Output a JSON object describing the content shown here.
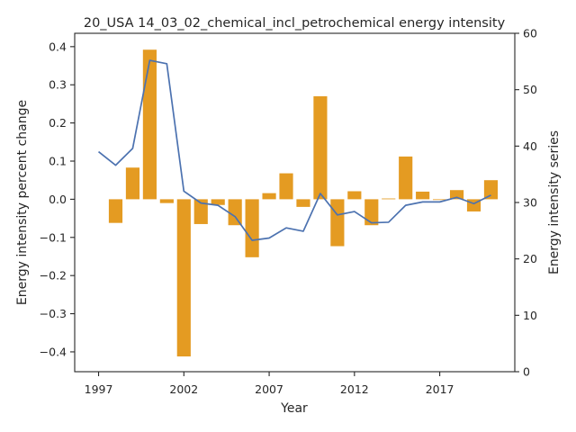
{
  "chart_data": {
    "type": "bar+line",
    "title": "20_USA 14_03_02_chemical_incl_petrochemical energy intensity",
    "xlabel": "Year",
    "ylabel_left": "Energy intensity percent change",
    "ylabel_right": "Energy intensity series",
    "x": [
      1997,
      1998,
      1999,
      2000,
      2001,
      2002,
      2003,
      2004,
      2005,
      2006,
      2007,
      2008,
      2009,
      2010,
      2011,
      2012,
      2013,
      2014,
      2015,
      2016,
      2017,
      2018,
      2019,
      2020
    ],
    "xlim": [
      1995.6,
      2021.4
    ],
    "xticks": [
      1997,
      2002,
      2007,
      2012,
      2017
    ],
    "ylim_left": [
      -0.452,
      0.435
    ],
    "yticks_left": [
      -0.4,
      -0.3,
      -0.2,
      -0.1,
      0.0,
      0.1,
      0.2,
      0.3,
      0.4
    ],
    "ylim_right": [
      0,
      60
    ],
    "yticks_right": [
      0,
      10,
      20,
      30,
      40,
      50,
      60
    ],
    "grid": false,
    "series": [
      {
        "kind": "bar",
        "axis": "left",
        "color": "#e49b22",
        "values": [
          null,
          -0.062,
          0.083,
          0.392,
          -0.01,
          -0.412,
          -0.065,
          -0.015,
          -0.068,
          -0.152,
          0.016,
          0.068,
          -0.02,
          0.27,
          -0.123,
          0.021,
          -0.068,
          0.002,
          0.112,
          0.02,
          0.0,
          0.024,
          -0.032,
          0.05
        ]
      },
      {
        "kind": "line",
        "axis": "right",
        "color": "#4c72b0",
        "values": [
          39.0,
          36.6,
          39.6,
          55.2,
          54.6,
          32.0,
          29.9,
          29.5,
          27.5,
          23.3,
          23.7,
          25.5,
          24.9,
          31.6,
          27.8,
          28.4,
          26.4,
          26.5,
          29.5,
          30.1,
          30.1,
          30.9,
          29.8,
          31.3
        ]
      }
    ]
  }
}
